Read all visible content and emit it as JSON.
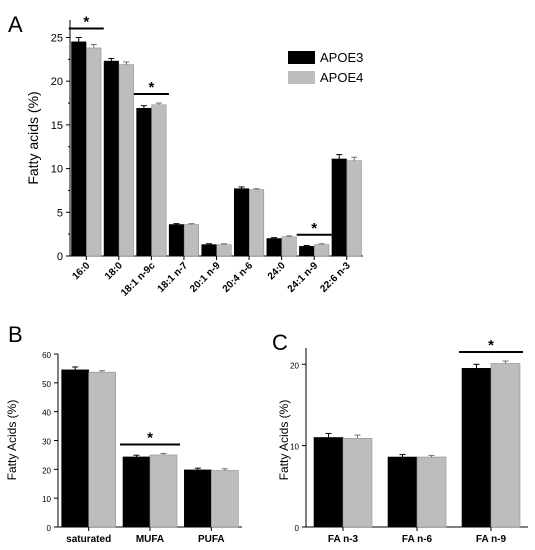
{
  "colors": {
    "apoe3": "#000000",
    "apoe4": "#bdbdbd",
    "axis": "#000000"
  },
  "chart_data": [
    {
      "panel_label": "A",
      "type": "bar",
      "ylabel": "Fatty acids (%)",
      "ylim": [
        0,
        27
      ],
      "yticks": [
        "0",
        "5",
        "10",
        "15",
        "20",
        "25"
      ],
      "categories": [
        "16:0",
        "18:0",
        "18:1 n-9c",
        "18:1 n-7",
        "20:1 n-9",
        "20:4 n-6",
        "24:0",
        "24:1 n-9",
        "22:6 n-3"
      ],
      "series": [
        {
          "name": "APOE3",
          "values": [
            24.5,
            22.3,
            16.9,
            3.6,
            1.3,
            7.7,
            2.0,
            1.1,
            11.1
          ],
          "errors": [
            0.5,
            0.3,
            0.3,
            0.1,
            0.1,
            0.2,
            0.1,
            0.1,
            0.5
          ]
        },
        {
          "name": "APOE4",
          "values": [
            23.8,
            21.9,
            17.3,
            3.6,
            1.3,
            7.6,
            2.2,
            1.3,
            10.9
          ],
          "errors": [
            0.4,
            0.3,
            0.2,
            0.1,
            0.1,
            0.1,
            0.1,
            0.1,
            0.4
          ]
        }
      ],
      "significance": [
        "16:0",
        "18:1 n-9c",
        "24:1 n-9"
      ],
      "star_label": "*",
      "legend": "top-right"
    },
    {
      "panel_label": "B",
      "type": "bar",
      "ylabel": "Fatty Acids (%)",
      "ylim": [
        0,
        60
      ],
      "yticks": [
        "0",
        "10",
        "20",
        "30",
        "40",
        "50",
        "60"
      ],
      "categories": [
        "saturated",
        "MUFA",
        "PUFA"
      ],
      "series": [
        {
          "name": "APOE3",
          "values": [
            54.5,
            24.3,
            19.8
          ],
          "errors": [
            1.0,
            0.6,
            0.6
          ]
        },
        {
          "name": "APOE4",
          "values": [
            53.7,
            25.0,
            19.6
          ],
          "errors": [
            0.5,
            0.5,
            0.6
          ]
        }
      ],
      "significance": [
        "MUFA"
      ],
      "star_label": "*"
    },
    {
      "panel_label": "C",
      "type": "bar",
      "ylabel": "Fatty Acids (%)",
      "ylim": [
        0,
        22
      ],
      "yticks": [
        "0",
        "10",
        "20"
      ],
      "categories": [
        "FA n-3",
        "FA n-6",
        "FA n-9"
      ],
      "series": [
        {
          "name": "APOE3",
          "values": [
            11.0,
            8.6,
            19.5
          ],
          "errors": [
            0.5,
            0.3,
            0.5
          ]
        },
        {
          "name": "APOE4",
          "values": [
            10.9,
            8.6,
            20.1
          ],
          "errors": [
            0.4,
            0.2,
            0.3
          ]
        }
      ],
      "significance": [
        "FA n-9"
      ],
      "star_label": "*"
    }
  ]
}
